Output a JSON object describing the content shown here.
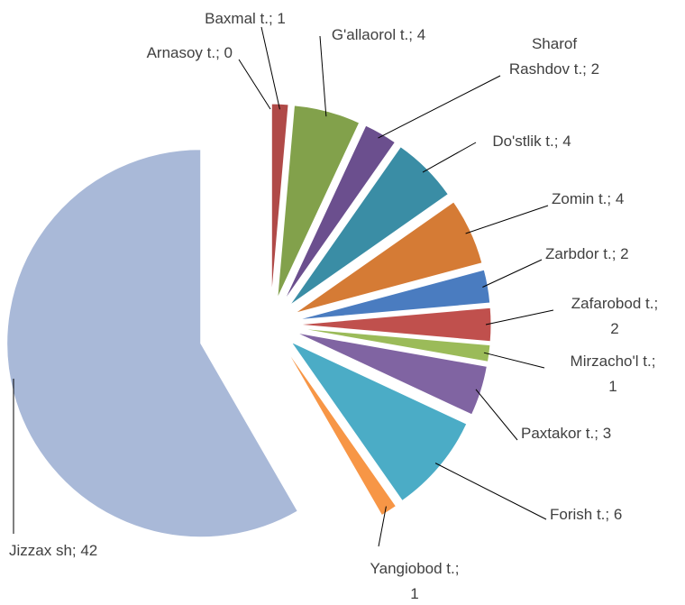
{
  "chart_data": {
    "type": "pie",
    "values": [
      0,
      1,
      4,
      2,
      4,
      4,
      2,
      2,
      1,
      3,
      6,
      1,
      42
    ],
    "value_labels": [
      "Arnasoy t.; 0",
      "Baxmal t.; 1",
      "G'allaorol t.; 4",
      "Sharof\nRashdov  t.; 2",
      "Do'stlik t.; 4",
      "Zomin t.; 4",
      "Zarbdor t.; 2",
      "Zafarobod t.;\n2",
      "Mirzacho'l t.;\n1",
      "Paxtakor t.; 3",
      "Forish t.; 6",
      "Yangiobod t.;\n1",
      "Jizzax sh; 42"
    ],
    "colors": [
      "#4f81bd",
      "#b04a48",
      "#82a14b",
      "#6b4f8e",
      "#3a8da5",
      "#d57b35",
      "#4a7cc0",
      "#c0504d",
      "#9bbb59",
      "#8064a2",
      "#4bacc6",
      "#f79646",
      "#a9b9d8"
    ]
  }
}
